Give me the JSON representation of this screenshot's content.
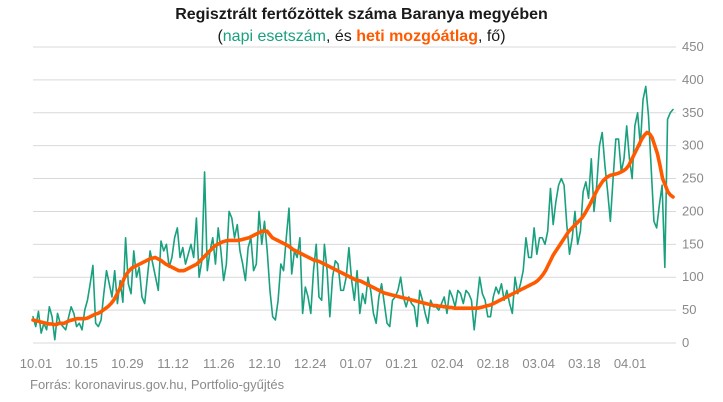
{
  "header": {
    "title": "Regisztrált fertőzöttek száma Baranya megyében",
    "subtitle_open": "(",
    "subtitle_series1": "napi esetszám",
    "subtitle_mid": ", és ",
    "subtitle_series2": "heti mozgóátlag",
    "subtitle_close": ", fő)"
  },
  "footer": {
    "source": "Forrás: koronavirus.gov.hu, Portfolio-gyűjtés"
  },
  "colors": {
    "daily": "#19a07f",
    "avg": "#ff5a00",
    "grid": "#d9d9d9",
    "tick": "#8a8a8a"
  },
  "chart_data": {
    "type": "line",
    "x_tick_labels": [
      "10.01",
      "10.15",
      "10.29",
      "11.12",
      "11.26",
      "12.10",
      "12.24",
      "01.07",
      "01.21",
      "02.04",
      "02.18",
      "03.04",
      "03.18",
      "04.01"
    ],
    "y_tick_labels": [
      "0",
      "50",
      "100",
      "150",
      "200",
      "250",
      "300",
      "350",
      "400",
      "450"
    ],
    "ylim": [
      0,
      450
    ],
    "grid": "horizontal",
    "series": [
      {
        "name": "napi esetszám",
        "color": "#19a07f",
        "values": [
          40,
          25,
          48,
          15,
          30,
          20,
          55,
          40,
          5,
          45,
          30,
          25,
          20,
          38,
          55,
          45,
          25,
          30,
          20,
          50,
          65,
          90,
          118,
          30,
          25,
          35,
          75,
          110,
          90,
          70,
          110,
          60,
          95,
          62,
          160,
          90,
          75,
          140,
          100,
          115,
          70,
          60,
          100,
          140,
          120,
          100,
          80,
          155,
          140,
          150,
          115,
          130,
          160,
          175,
          130,
          145,
          120,
          135,
          150,
          130,
          190,
          100,
          125,
          260,
          110,
          140,
          160,
          120,
          175,
          140,
          95,
          120,
          200,
          190,
          160,
          180,
          140,
          120,
          95,
          145,
          160,
          110,
          120,
          200,
          150,
          185,
          140,
          80,
          40,
          35,
          65,
          120,
          110,
          160,
          205,
          105,
          140,
          130,
          160,
          45,
          85,
          70,
          45,
          110,
          150,
          70,
          65,
          150,
          110,
          40,
          100,
          125,
          120,
          80,
          80,
          100,
          145,
          95,
          65,
          110,
          45,
          75,
          60,
          100,
          80,
          45,
          30,
          70,
          90,
          60,
          30,
          25,
          65,
          70,
          80,
          100,
          70,
          55,
          70,
          60,
          55,
          25,
          80,
          65,
          45,
          30,
          65,
          55,
          55,
          50,
          60,
          70,
          45,
          80,
          70,
          55,
          80,
          75,
          60,
          80,
          75,
          65,
          20,
          60,
          100,
          75,
          65,
          40,
          40,
          70,
          85,
          75,
          90,
          65,
          80,
          60,
          45,
          100,
          75,
          90,
          110,
          160,
          130,
          130,
          175,
          135,
          160,
          160,
          150,
          170,
          235,
          180,
          215,
          240,
          250,
          240,
          180,
          135,
          160,
          200,
          150,
          170,
          230,
          245,
          220,
          280,
          200,
          240,
          300,
          320,
          270,
          230,
          185,
          250,
          310,
          310,
          260,
          280,
          330,
          280,
          250,
          330,
          350,
          300,
          370,
          390,
          345,
          265,
          185,
          175,
          210,
          240,
          115,
          340,
          350,
          355
        ]
      },
      {
        "name": "heti mozgóátlag",
        "color": "#ff5a00",
        "values": [
          35,
          34,
          33,
          32,
          31,
          30,
          29,
          29,
          28,
          28,
          30,
          30,
          30,
          32,
          34,
          35,
          36,
          37,
          37,
          37,
          37,
          38,
          40,
          42,
          44,
          45,
          47,
          50,
          53,
          56,
          60,
          65,
          72,
          80,
          88,
          98,
          105,
          110,
          114,
          116,
          118,
          120,
          122,
          124,
          126,
          128,
          129,
          130,
          128,
          126,
          123,
          120,
          118,
          116,
          114,
          112,
          110,
          110,
          110,
          112,
          114,
          116,
          118,
          120,
          124,
          128,
          132,
          136,
          140,
          144,
          148,
          150,
          152,
          154,
          155,
          156,
          156,
          156,
          156,
          156,
          157,
          158,
          159,
          160,
          162,
          164,
          166,
          168,
          170,
          170,
          170,
          165,
          160,
          158,
          156,
          154,
          152,
          150,
          148,
          145,
          142,
          140,
          138,
          136,
          134,
          132,
          130,
          128,
          126,
          125,
          124,
          122,
          120,
          118,
          116,
          114,
          112,
          110,
          108,
          106,
          104,
          102,
          100,
          98,
          96,
          95,
          94,
          92,
          90,
          88,
          86,
          84,
          82,
          80,
          78,
          76,
          75,
          74,
          73,
          72,
          71,
          70,
          69,
          68,
          67,
          66,
          65,
          64,
          63,
          62,
          61,
          60,
          59,
          58,
          57,
          57,
          56,
          56,
          55,
          55,
          54,
          54,
          53,
          53,
          53,
          53,
          53,
          53,
          53,
          53,
          53,
          53,
          54,
          55,
          56,
          57,
          58,
          60,
          62,
          64,
          66,
          68,
          70,
          72,
          74,
          76,
          78,
          80,
          82,
          84,
          86,
          88,
          90,
          92,
          95,
          99,
          104,
          110,
          118,
          126,
          134,
          140,
          146,
          152,
          158,
          164,
          170,
          174,
          178,
          182,
          186,
          190,
          196,
          203,
          210,
          218,
          226,
          234,
          240,
          246,
          250,
          253,
          255,
          256,
          257,
          258,
          260,
          262,
          265,
          270,
          278,
          286,
          294,
          302,
          310,
          316,
          320,
          318,
          312,
          300,
          288,
          270,
          250,
          240,
          230,
          225,
          222
        ]
      }
    ]
  }
}
